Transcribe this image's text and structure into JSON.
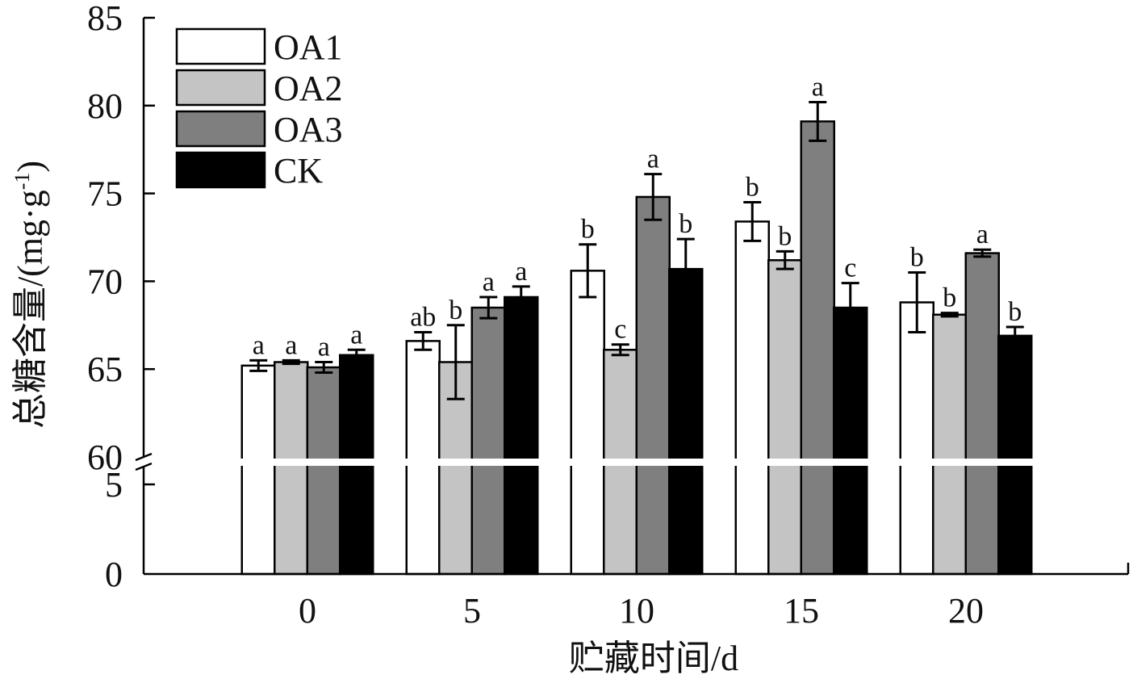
{
  "chart_data": {
    "type": "bar",
    "xlabel": "贮藏时间/d",
    "ylabel": "总糖含量/(mg·g",
    "ylabel_sup": "-1",
    "ylabel_tail": ")",
    "categories": [
      "0",
      "5",
      "10",
      "15",
      "20"
    ],
    "y_ticks_upper": [
      "60",
      "65",
      "70",
      "75",
      "80",
      "85"
    ],
    "y_ticks_lower": [
      "0",
      "5"
    ],
    "ylim_upper": [
      60,
      85
    ],
    "ylim_lower": [
      0,
      5
    ],
    "axis_break": true,
    "legend": {
      "position": "top-left"
    },
    "grid": false,
    "series": [
      {
        "name": "OA1",
        "color": "#ffffff",
        "values": [
          65.2,
          66.6,
          70.6,
          73.4,
          68.8
        ],
        "errors": [
          0.3,
          0.5,
          1.5,
          1.1,
          1.7
        ],
        "letters": [
          "a",
          "ab",
          "b",
          "b",
          "b"
        ]
      },
      {
        "name": "OA2",
        "color": "#c4c4c4",
        "values": [
          65.4,
          65.4,
          66.1,
          71.2,
          68.1
        ],
        "errors": [
          0.1,
          2.1,
          0.3,
          0.5,
          0.1
        ],
        "letters": [
          "a",
          "b",
          "c",
          "b",
          "b"
        ]
      },
      {
        "name": "OA3",
        "color": "#7f7f7f",
        "values": [
          65.1,
          68.5,
          74.8,
          79.1,
          71.6
        ],
        "errors": [
          0.3,
          0.6,
          1.3,
          1.1,
          0.2
        ],
        "letters": [
          "a",
          "a",
          "a",
          "a",
          "a"
        ]
      },
      {
        "name": "CK",
        "color": "#000000",
        "values": [
          65.8,
          69.1,
          70.7,
          68.5,
          66.9
        ],
        "errors": [
          0.3,
          0.6,
          1.7,
          1.4,
          0.5
        ],
        "letters": [
          "a",
          "a",
          "b",
          "c",
          "b"
        ]
      }
    ]
  }
}
